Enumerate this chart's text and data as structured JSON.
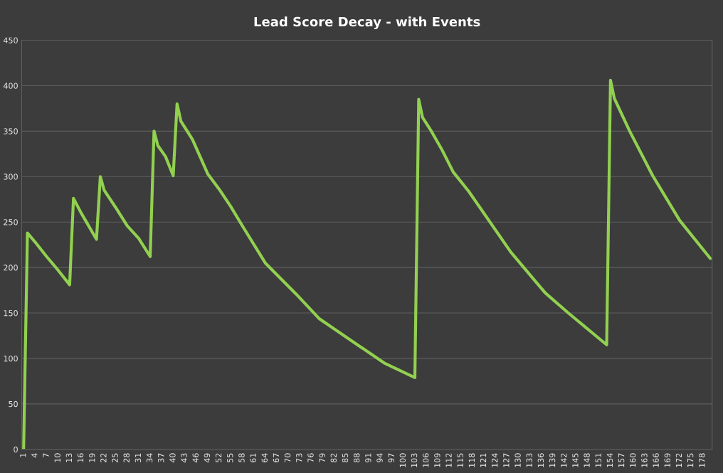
{
  "chart_data": {
    "type": "line",
    "title": "Lead Score Decay - with Events",
    "series": [
      {
        "color": "#92d050",
        "x": [
          1,
          2,
          4,
          7,
          10,
          13,
          14,
          16,
          20,
          21,
          22,
          25,
          28,
          31,
          34,
          35,
          36,
          38,
          40,
          41,
          42,
          45,
          49,
          52,
          55,
          58,
          64,
          72,
          78,
          87,
          95,
          103,
          104,
          105,
          107,
          110,
          113,
          117,
          128,
          137,
          143,
          147,
          153,
          154,
          155,
          159,
          165,
          172,
          180
        ],
        "values": [
          0,
          238,
          228,
          212,
          197,
          181,
          276,
          260,
          231,
          300,
          285,
          266,
          246,
          232,
          212,
          350,
          334,
          322,
          301,
          380,
          361,
          341,
          303,
          286,
          267,
          246,
          205,
          171,
          144,
          118,
          95,
          79,
          385,
          365,
          352,
          330,
          305,
          284,
          217,
          172,
          150,
          136,
          115,
          406,
          386,
          350,
          301,
          252,
          210
        ]
      }
    ],
    "xlim": [
      0.5,
      180.5
    ],
    "xticks": [
      1,
      4,
      7,
      10,
      13,
      16,
      19,
      22,
      25,
      28,
      31,
      34,
      37,
      40,
      43,
      46,
      49,
      52,
      55,
      58,
      61,
      64,
      67,
      70,
      73,
      76,
      79,
      82,
      85,
      88,
      91,
      94,
      97,
      100,
      103,
      106,
      109,
      112,
      115,
      118,
      121,
      124,
      127,
      130,
      133,
      136,
      139,
      142,
      145,
      148,
      151,
      154,
      157,
      160,
      163,
      166,
      169,
      172,
      175,
      178
    ],
    "ylim": [
      0,
      450
    ],
    "yticks": [
      0,
      50,
      100,
      150,
      200,
      250,
      300,
      350,
      400,
      450
    ],
    "grid": "y",
    "marker": "none",
    "line_style": "solid",
    "legend": false
  }
}
